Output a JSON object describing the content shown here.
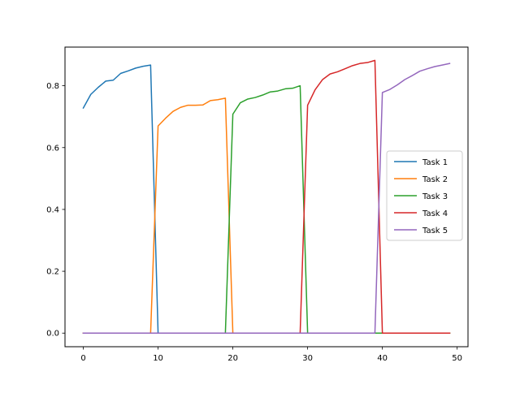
{
  "chart_data": {
    "type": "line",
    "title": "",
    "xlabel": "",
    "ylabel": "",
    "xlim": [
      -2.45,
      51.45
    ],
    "ylim": [
      -0.044,
      0.925
    ],
    "xticks": [
      0,
      10,
      20,
      30,
      40,
      50
    ],
    "yticks": [
      0.0,
      0.2,
      0.4,
      0.6,
      0.8
    ],
    "xtick_labels": [
      "0",
      "10",
      "20",
      "30",
      "40",
      "50"
    ],
    "ytick_labels": [
      "0.0",
      "0.2",
      "0.4",
      "0.6",
      "0.8"
    ],
    "legend_position": "center-right",
    "x": [
      0,
      1,
      2,
      3,
      4,
      5,
      6,
      7,
      8,
      9,
      10,
      11,
      12,
      13,
      14,
      15,
      16,
      17,
      18,
      19,
      20,
      21,
      22,
      23,
      24,
      25,
      26,
      27,
      28,
      29,
      30,
      31,
      32,
      33,
      34,
      35,
      36,
      37,
      38,
      39,
      40,
      41,
      42,
      43,
      44,
      45,
      46,
      47,
      48,
      49
    ],
    "series": [
      {
        "name": "Task 1",
        "color": "#1f77b4",
        "values": [
          0.728,
          0.772,
          0.795,
          0.815,
          0.818,
          0.84,
          0.848,
          0.857,
          0.863,
          0.867,
          0,
          0,
          0,
          0,
          0,
          0,
          0,
          0,
          0,
          0,
          0,
          0,
          0,
          0,
          0,
          0,
          0,
          0,
          0,
          0,
          0,
          0,
          0,
          0,
          0,
          0,
          0,
          0,
          0,
          0,
          0,
          0,
          0,
          0,
          0,
          0,
          0,
          0,
          0,
          0
        ]
      },
      {
        "name": "Task 2",
        "color": "#ff7f0e",
        "values": [
          0,
          0,
          0,
          0,
          0,
          0,
          0,
          0,
          0,
          0,
          0.67,
          0.695,
          0.717,
          0.73,
          0.737,
          0.737,
          0.738,
          0.752,
          0.755,
          0.76,
          0,
          0,
          0,
          0,
          0,
          0,
          0,
          0,
          0,
          0,
          0,
          0,
          0,
          0,
          0,
          0,
          0,
          0,
          0,
          0,
          0,
          0,
          0,
          0,
          0,
          0,
          0,
          0,
          0,
          0
        ]
      },
      {
        "name": "Task 3",
        "color": "#2ca02c",
        "values": [
          0,
          0,
          0,
          0,
          0,
          0,
          0,
          0,
          0,
          0,
          0,
          0,
          0,
          0,
          0,
          0,
          0,
          0,
          0,
          0,
          0.708,
          0.745,
          0.757,
          0.762,
          0.77,
          0.78,
          0.783,
          0.79,
          0.792,
          0.8,
          0,
          0,
          0,
          0,
          0,
          0,
          0,
          0,
          0,
          0,
          0,
          0,
          0,
          0,
          0,
          0,
          0,
          0,
          0,
          0
        ]
      },
      {
        "name": "Task 4",
        "color": "#d62728",
        "values": [
          0,
          0,
          0,
          0,
          0,
          0,
          0,
          0,
          0,
          0,
          0,
          0,
          0,
          0,
          0,
          0,
          0,
          0,
          0,
          0,
          0,
          0,
          0,
          0,
          0,
          0,
          0,
          0,
          0,
          0,
          0.737,
          0.787,
          0.82,
          0.838,
          0.845,
          0.855,
          0.865,
          0.872,
          0.875,
          0.882,
          0,
          0,
          0,
          0,
          0,
          0,
          0,
          0,
          0,
          0
        ]
      },
      {
        "name": "Task 5",
        "color": "#9467bd",
        "values": [
          0,
          0,
          0,
          0,
          0,
          0,
          0,
          0,
          0,
          0,
          0,
          0,
          0,
          0,
          0,
          0,
          0,
          0,
          0,
          0,
          0,
          0,
          0,
          0,
          0,
          0,
          0,
          0,
          0,
          0,
          0,
          0,
          0,
          0,
          0,
          0,
          0,
          0,
          0,
          0,
          0.778,
          0.788,
          0.803,
          0.82,
          0.833,
          0.847,
          0.855,
          0.862,
          0.867,
          0.872
        ]
      }
    ],
    "grid": false
  }
}
